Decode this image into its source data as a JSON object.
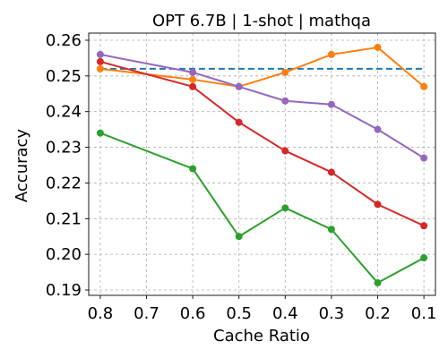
{
  "chart_data": {
    "type": "line",
    "title": "OPT 6.7B | 1-shot | mathqa",
    "xlabel": "Cache Ratio",
    "ylabel": "Accuracy",
    "x_ticks": [
      "0.8",
      "0.7",
      "0.6",
      "0.5",
      "0.4",
      "0.3",
      "0.2",
      "0.1"
    ],
    "xlim": [
      0.825,
      0.075
    ],
    "ylim": [
      0.1885,
      0.262
    ],
    "y_ticks": [
      "0.19",
      "0.20",
      "0.21",
      "0.22",
      "0.23",
      "0.24",
      "0.25",
      "0.26"
    ],
    "grid": true,
    "x": [
      0.8,
      0.6,
      0.5,
      0.4,
      0.3,
      0.2,
      0.1
    ],
    "reference_line": {
      "y": 0.252,
      "x_range": [
        0.8,
        0.1
      ],
      "color": "#1f77b4",
      "style": "dashed"
    },
    "series": [
      {
        "color": "#ff7f0e",
        "values": [
          0.252,
          0.249,
          0.247,
          0.251,
          0.256,
          0.258,
          0.247
        ]
      },
      {
        "color": "#d62728",
        "values": [
          0.254,
          0.247,
          0.237,
          0.229,
          0.223,
          0.214,
          0.208
        ]
      },
      {
        "color": "#9467bd",
        "values": [
          0.256,
          0.251,
          0.247,
          0.243,
          0.242,
          0.235,
          0.227
        ]
      },
      {
        "color": "#2ca02c",
        "values": [
          0.234,
          0.224,
          0.205,
          0.213,
          0.207,
          0.192,
          0.199
        ]
      }
    ]
  }
}
